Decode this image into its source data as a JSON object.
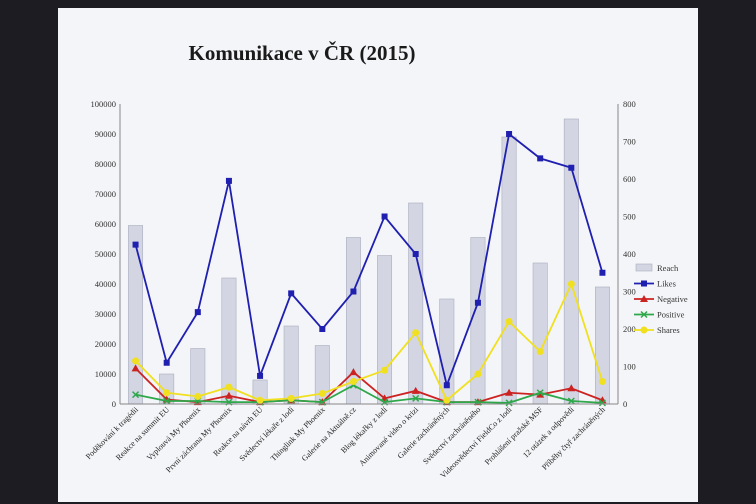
{
  "chart_data": {
    "type": "bar",
    "title": "Komunikace v ČR (2015)",
    "categories": [
      "Poděkování k tragédii",
      "Reakce na summit EU",
      "Vyplouvá My Phoenix",
      "První záchrana My Phoenix",
      "Reakce na návrh EU",
      "Svědectví lékaře z lodí",
      "Thinglink My Phoenix",
      "Galerie na Aktuálně.cz",
      "Blog lékařky z lodí",
      "Animované video o krizi",
      "Galerie zachráněných",
      "Svědectví zachráněného",
      "Videosvědectví FieldCo z lodí",
      "Prohlášení pražské MSF",
      "12 otázek a odpovědí",
      "Příběhy čtyř zachráněných"
    ],
    "left_axis": {
      "min": 0,
      "max": 100000,
      "step": 10000
    },
    "right_axis": {
      "min": 0,
      "max": 800,
      "step": 100
    },
    "series": [
      {
        "name": "Reach",
        "kind": "bar",
        "axis": "left",
        "color": "#d3d6e2",
        "values": [
          59500,
          10000,
          18500,
          42000,
          8000,
          26000,
          19500,
          55500,
          49500,
          67000,
          35000,
          55500,
          89000,
          47000,
          95000,
          39000
        ]
      },
      {
        "name": "Likes",
        "kind": "line",
        "axis": "right",
        "color": "#1f1fb0",
        "marker": "square",
        "values": [
          425,
          110,
          245,
          595,
          75,
          295,
          200,
          300,
          500,
          400,
          50,
          270,
          720,
          655,
          630,
          350
        ]
      },
      {
        "name": "Negative",
        "kind": "line",
        "axis": "right",
        "color": "#cc2222",
        "marker": "triangle",
        "values": [
          95,
          12,
          5,
          22,
          5,
          10,
          5,
          85,
          15,
          35,
          5,
          5,
          30,
          25,
          42,
          10
        ]
      },
      {
        "name": "Positive",
        "kind": "line",
        "axis": "right",
        "color": "#2ea84a",
        "marker": "x",
        "values": [
          25,
          8,
          8,
          5,
          5,
          10,
          5,
          50,
          5,
          15,
          5,
          5,
          3,
          30,
          8,
          3
        ]
      },
      {
        "name": "Shares",
        "kind": "line",
        "axis": "right",
        "color": "#f0e020",
        "marker": "circle",
        "values": [
          115,
          30,
          20,
          45,
          10,
          15,
          28,
          60,
          90,
          190,
          10,
          80,
          220,
          140,
          320,
          60
        ]
      }
    ],
    "legend_position": "right"
  }
}
